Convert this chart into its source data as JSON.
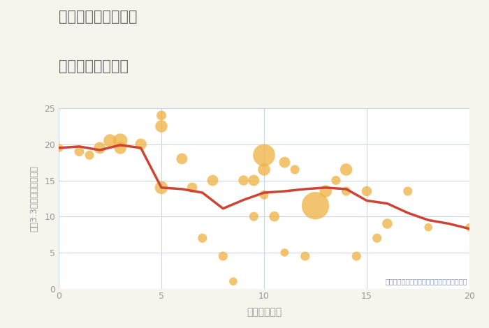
{
  "title_line1": "三重県伊勢市河崎の",
  "title_line2": "駅距離別土地価格",
  "xlabel": "駅距離（分）",
  "ylabel": "平（3.3㎡）単価（万円）",
  "annotation": "円の大きさは、取引のあった物件面積を示す",
  "xlim": [
    0,
    20
  ],
  "ylim": [
    0,
    25
  ],
  "xticks": [
    0,
    5,
    10,
    15,
    20
  ],
  "yticks": [
    0,
    5,
    10,
    15,
    20,
    25
  ],
  "line_x": [
    0,
    1,
    2,
    3,
    4,
    5,
    6,
    7,
    8,
    9,
    10,
    11,
    12,
    13,
    14,
    15,
    16,
    17,
    18,
    19,
    20
  ],
  "line_y": [
    19.5,
    19.7,
    19.2,
    19.9,
    19.5,
    14.0,
    13.8,
    13.3,
    11.1,
    12.3,
    13.3,
    13.5,
    13.8,
    14.0,
    13.8,
    12.2,
    11.8,
    10.5,
    9.5,
    9.0,
    8.3
  ],
  "line_color": "#cc4433",
  "line_width": 2.5,
  "scatter_x": [
    0,
    1,
    1.5,
    2,
    2.5,
    3,
    3,
    4,
    5,
    5,
    5,
    6,
    6.5,
    7,
    7.5,
    8,
    8.5,
    9,
    9.5,
    9.5,
    10,
    10,
    10,
    10.5,
    11,
    11,
    11.5,
    12,
    12.5,
    13,
    13.5,
    14,
    14,
    14.5,
    15,
    15.5,
    16,
    17,
    18,
    20
  ],
  "scatter_y": [
    19.5,
    19.0,
    18.5,
    19.5,
    20.5,
    20.5,
    19.5,
    20.0,
    14.0,
    22.5,
    24.0,
    18.0,
    14.0,
    7.0,
    15.0,
    4.5,
    1.0,
    15.0,
    15.0,
    10.0,
    18.5,
    16.5,
    13.0,
    10.0,
    17.5,
    5.0,
    16.5,
    4.5,
    11.5,
    13.5,
    15.0,
    16.5,
    13.5,
    4.5,
    13.5,
    7.0,
    9.0,
    13.5,
    8.5,
    8.5
  ],
  "scatter_sizes": [
    80,
    100,
    90,
    150,
    180,
    220,
    160,
    140,
    180,
    160,
    100,
    130,
    110,
    90,
    130,
    90,
    70,
    110,
    130,
    90,
    520,
    160,
    90,
    110,
    130,
    70,
    90,
    90,
    800,
    160,
    90,
    160,
    90,
    90,
    110,
    90,
    110,
    90,
    70,
    70
  ],
  "scatter_color": "#f0b040",
  "scatter_alpha": 0.75,
  "background_color": "#f5f5ee",
  "plot_bg_color": "#ffffff",
  "grid_color": "#c8d8e8",
  "title_color": "#666666",
  "label_color": "#999999",
  "annotation_color": "#8899bb"
}
